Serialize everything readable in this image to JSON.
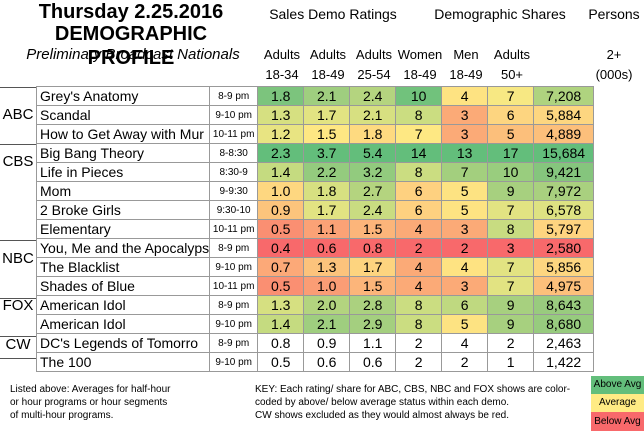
{
  "title": {
    "line1": "Thursday 2.25.2016",
    "line2": "DEMOGRAPHIC PROFILE",
    "line3": "Preliminary Broadcast Nationals"
  },
  "group_headers": [
    "Sales Demo Ratings",
    "Demographic Shares",
    "Persons"
  ],
  "columns": [
    {
      "top": "Adults",
      "bottom": "18-34"
    },
    {
      "top": "Adults",
      "bottom": "18-49"
    },
    {
      "top": "Adults",
      "bottom": "25-54"
    },
    {
      "top": "Women",
      "bottom": "18-49"
    },
    {
      "top": "Men",
      "bottom": "18-49"
    },
    {
      "top": "Adults",
      "bottom": "50+"
    },
    {
      "top": "2+",
      "bottom": "(000s)"
    }
  ],
  "colors": {
    "above": "#63be7b",
    "average": "#ffeb84",
    "below": "#f8696b"
  },
  "rows": [
    {
      "net": "ABC",
      "show": "Grey's Anatomy",
      "time": "8-9 pm",
      "vals": [
        "1.8",
        "2.1",
        "2.4",
        "10",
        "4",
        "7",
        "7,208"
      ],
      "c": [
        "#7cc47d",
        "#9fce7f",
        "#b4d47f",
        "#71c27c",
        "#fee382",
        "#f7e883",
        "#afd37f"
      ]
    },
    {
      "net": "",
      "show": "Scandal",
      "time": "9-10 pm",
      "vals": [
        "1.3",
        "1.7",
        "2.1",
        "8",
        "3",
        "6",
        "5,884"
      ],
      "c": [
        "#d6e081",
        "#e2e382",
        "#d7e081",
        "#cbdd81",
        "#fbaa77",
        "#fdd580",
        "#fdd680"
      ]
    },
    {
      "net": "",
      "show": "How to Get Away with Mur",
      "time": "10-11 pm",
      "vals": [
        "1.2",
        "1.5",
        "1.8",
        "7",
        "3",
        "5",
        "4,889"
      ],
      "c": [
        "#e8e482",
        "#fee783",
        "#feda80",
        "#fee883",
        "#fbaa77",
        "#fcbf7b",
        "#fcbf7b"
      ]
    },
    {
      "net": "CBS",
      "show": "Big Bang Theory",
      "time": "8-8:30",
      "vals": [
        "2.3",
        "3.7",
        "5.4",
        "14",
        "13",
        "17",
        "15,684"
      ],
      "c": [
        "#63be7b",
        "#63be7b",
        "#63be7b",
        "#63be7b",
        "#63be7b",
        "#63be7b",
        "#63be7b"
      ]
    },
    {
      "net": "",
      "show": "Life in Pieces",
      "time": "8:30-9",
      "vals": [
        "1.4",
        "2.2",
        "3.2",
        "8",
        "7",
        "10",
        "9,421"
      ],
      "c": [
        "#c5db80",
        "#94cb7e",
        "#92cb7e",
        "#cbdd81",
        "#a3cf7e",
        "#99cd7e",
        "#85c57d"
      ]
    },
    {
      "net": "",
      "show": "Mom",
      "time": "9-9:30",
      "vals": [
        "1.0",
        "1.8",
        "2.7",
        "6",
        "5",
        "9",
        "7,972"
      ],
      "c": [
        "#fed780",
        "#d7e081",
        "#b4d47f",
        "#fed180",
        "#fde382",
        "#a7d07f",
        "#a9d07f"
      ]
    },
    {
      "net": "",
      "show": "2 Broke Girls",
      "time": "9:30-10",
      "vals": [
        "0.9",
        "1.7",
        "2.4",
        "6",
        "5",
        "7",
        "6,578"
      ],
      "c": [
        "#fcc47c",
        "#e2e382",
        "#c9dc81",
        "#fed180",
        "#fde382",
        "#e2e382",
        "#dee282"
      ]
    },
    {
      "net": "",
      "show": "Elementary",
      "time": "10-11 pm",
      "vals": [
        "0.5",
        "1.1",
        "1.5",
        "4",
        "3",
        "8",
        "5,797"
      ],
      "c": [
        "#fa8f72",
        "#fba276",
        "#fcb57a",
        "#fbaa77",
        "#fbaa77",
        "#c8dc81",
        "#fed480"
      ]
    },
    {
      "net": "NBC",
      "show": "You, Me and the Apocalyps",
      "time": "8-9 pm",
      "vals": [
        "0.4",
        "0.6",
        "0.8",
        "2",
        "2",
        "3",
        "2,580"
      ],
      "c": [
        "#f8696b",
        "#f8696b",
        "#f8696b",
        "#f8696b",
        "#f8696b",
        "#f8696b",
        "#f8696b"
      ]
    },
    {
      "net": "",
      "show": "The Blacklist",
      "time": "9-10 pm",
      "vals": [
        "0.7",
        "1.3",
        "1.7",
        "4",
        "4",
        "7",
        "5,856"
      ],
      "c": [
        "#fca978",
        "#fcc37c",
        "#fdd47f",
        "#fbaa77",
        "#fee382",
        "#e2e382",
        "#fdd680"
      ]
    },
    {
      "net": "",
      "show": "Shades of Blue",
      "time": "10-11 pm",
      "vals": [
        "0.5",
        "1.0",
        "1.5",
        "4",
        "3",
        "7",
        "4,975"
      ],
      "c": [
        "#fa8f72",
        "#fa9d75",
        "#fcb57a",
        "#fbaa77",
        "#fbaa77",
        "#e2e382",
        "#fcc07b"
      ]
    },
    {
      "net": "FOX",
      "show": "American Idol",
      "time": "8-9 pm",
      "vals": [
        "1.3",
        "2.0",
        "2.8",
        "8",
        "6",
        "9",
        "8,643"
      ],
      "c": [
        "#d6e081",
        "#b3d47f",
        "#abd17f",
        "#cbdd81",
        "#bfd980",
        "#a7d07f",
        "#99cb7e"
      ]
    },
    {
      "net": "",
      "show": "American Idol",
      "time": "9-10 pm",
      "vals": [
        "1.4",
        "2.1",
        "2.9",
        "8",
        "5",
        "9",
        "8,680"
      ],
      "c": [
        "#c5db80",
        "#9fce7f",
        "#a4cf7f",
        "#cbdd81",
        "#fde382",
        "#a7d07f",
        "#97cb7e"
      ]
    },
    {
      "net": "CW",
      "show": "DC's Legends of Tomorro",
      "time": "8-9 pm",
      "vals": [
        "0.8",
        "0.9",
        "1.1",
        "2",
        "4",
        "2",
        "2,463"
      ],
      "c": [
        "#ffffff",
        "#ffffff",
        "#ffffff",
        "#ffffff",
        "#ffffff",
        "#ffffff",
        "#ffffff"
      ]
    },
    {
      "net": "",
      "show": "The 100",
      "time": "9-10 pm",
      "vals": [
        "0.5",
        "0.6",
        "0.6",
        "2",
        "2",
        "1",
        "1,422"
      ],
      "c": [
        "#ffffff",
        "#ffffff",
        "#ffffff",
        "#ffffff",
        "#ffffff",
        "#ffffff",
        "#ffffff"
      ]
    }
  ],
  "footer": {
    "left": [
      "Listed above: Averages for half-hour",
      "or hour programs or hour segments",
      "of multi-hour programs."
    ],
    "right": [
      "KEY: Each rating/ share for ABC, CBS, NBC and FOX shows are color-",
      "coded by above/ below average status within each demo.",
      "CW shows excluded as they would almost always be red."
    ],
    "legend": [
      "Above Avg",
      "Average",
      "Below Avg"
    ]
  }
}
